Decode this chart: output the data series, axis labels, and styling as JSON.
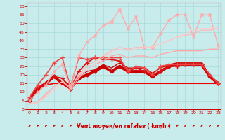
{
  "xlabel": "Vent moyen/en rafales ( km/h )",
  "x": [
    0,
    1,
    2,
    3,
    4,
    5,
    6,
    7,
    8,
    9,
    10,
    11,
    12,
    13,
    14,
    15,
    16,
    17,
    18,
    19,
    20,
    21,
    22,
    23
  ],
  "ylim": [
    0,
    62
  ],
  "xlim": [
    -0.3,
    23.3
  ],
  "background_color": "#c8ecec",
  "lines": [
    {
      "y": [
        5,
        12,
        14,
        15,
        15,
        15,
        15,
        15,
        15,
        15,
        15,
        15,
        15,
        15,
        15,
        15,
        15,
        15,
        15,
        15,
        15,
        15,
        15,
        15
      ],
      "color": "#ee0000",
      "linewidth": 1.2,
      "marker": null,
      "markersize": 0
    },
    {
      "y": [
        5,
        12,
        15,
        19,
        15,
        12,
        18,
        20,
        22,
        25,
        22,
        25,
        22,
        22,
        22,
        19,
        22,
        25,
        26,
        26,
        26,
        26,
        19,
        15
      ],
      "color": "#cc0000",
      "linewidth": 2.8,
      "marker": "D",
      "markersize": 2.5
    },
    {
      "y": [
        6,
        13,
        15,
        19,
        18,
        13,
        19,
        22,
        23,
        26,
        24,
        27,
        24,
        24,
        24,
        21,
        24,
        26,
        27,
        27,
        27,
        27,
        20,
        15
      ],
      "color": "#cc0000",
      "linewidth": 1.0,
      "marker": null,
      "markersize": 0
    },
    {
      "y": [
        6,
        12,
        15,
        19,
        18,
        12,
        22,
        27,
        30,
        29,
        29,
        28,
        22,
        24,
        22,
        20,
        22,
        25,
        25,
        26,
        26,
        26,
        20,
        15
      ],
      "color": "#dd1111",
      "linewidth": 1.2,
      "marker": "+",
      "markersize": 4
    },
    {
      "y": [
        7,
        14,
        20,
        27,
        30,
        13,
        30,
        29,
        30,
        30,
        30,
        30,
        22,
        25,
        24,
        20,
        25,
        26,
        26,
        26,
        26,
        26,
        20,
        15
      ],
      "color": "#ee4444",
      "linewidth": 1.2,
      "marker": "+",
      "markersize": 4
    },
    {
      "y": [
        3,
        4,
        9,
        13,
        16,
        13,
        19,
        23,
        26,
        28,
        31,
        32,
        30,
        31,
        31,
        30,
        32,
        33,
        34,
        34,
        34,
        34,
        35,
        35
      ],
      "color": "#ffaaaa",
      "linewidth": 1.0,
      "marker": null,
      "markersize": 0
    },
    {
      "y": [
        3,
        4,
        8,
        13,
        16,
        12,
        20,
        25,
        28,
        31,
        34,
        36,
        35,
        36,
        36,
        36,
        38,
        40,
        42,
        43,
        44,
        46,
        46,
        47
      ],
      "color": "#ffbbbb",
      "linewidth": 1.0,
      "marker": null,
      "markersize": 0
    },
    {
      "y": [
        5,
        10,
        14,
        22,
        26,
        13,
        31,
        39,
        43,
        49,
        51,
        58,
        47,
        54,
        36,
        36,
        44,
        52,
        55,
        55,
        42,
        55,
        55,
        37
      ],
      "color": "#ffaaaa",
      "linewidth": 1.0,
      "marker": "x",
      "markersize": 3
    },
    {
      "y": [
        3,
        4,
        7,
        11,
        14,
        11,
        18,
        23,
        26,
        30,
        33,
        35,
        34,
        35,
        36,
        36,
        38,
        40,
        42,
        44,
        46,
        47,
        47,
        48
      ],
      "color": "#ffcccc",
      "linewidth": 0.8,
      "marker": null,
      "markersize": 0
    }
  ],
  "yticks": [
    0,
    5,
    10,
    15,
    20,
    25,
    30,
    35,
    40,
    45,
    50,
    55,
    60
  ],
  "xticks": [
    0,
    1,
    2,
    3,
    4,
    5,
    6,
    7,
    8,
    9,
    10,
    11,
    12,
    13,
    14,
    15,
    16,
    17,
    18,
    19,
    20,
    21,
    22,
    23
  ],
  "grid_color": "#a8d8d8",
  "tick_color": "#cc0000",
  "label_color": "#cc0000",
  "arrow_color": "#cc0000",
  "spine_color": "#cc0000"
}
